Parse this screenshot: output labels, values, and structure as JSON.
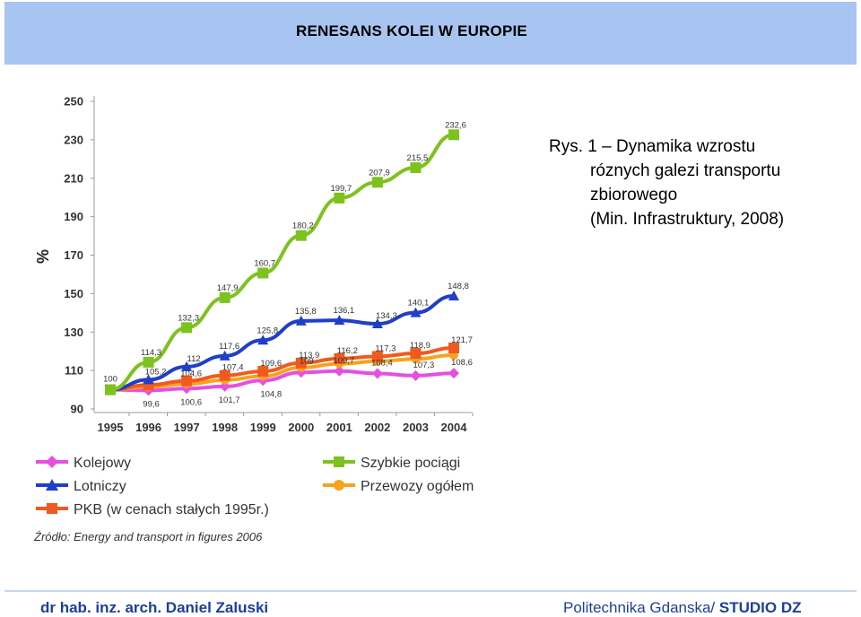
{
  "header": {
    "title": "RENESANS KOLEI W EUROPIE"
  },
  "caption": {
    "line1": "Rys. 1 – Dynamika wzrostu",
    "line2": "róznych galezi transportu",
    "line3": "zbiorowego",
    "line4": "(Min. Infrastruktury, 2008)"
  },
  "chart_data": {
    "type": "line",
    "title": "",
    "xlabel": "",
    "ylabel": "%",
    "x": [
      1995,
      1996,
      1997,
      1998,
      1999,
      2000,
      2001,
      2002,
      2003,
      2004
    ],
    "ylim": [
      90,
      250
    ],
    "yticks": [
      90,
      110,
      130,
      150,
      170,
      190,
      210,
      230,
      250
    ],
    "grid": false,
    "legend_position": "bottom",
    "series": [
      {
        "name": "Szybkie pociągi",
        "color": "#7dc21e",
        "marker": "square",
        "values": [
          100,
          114.3,
          132.3,
          147.9,
          160.7,
          180.2,
          199.7,
          207.9,
          215.5,
          232.6
        ],
        "labels": [
          "",
          "114,3",
          "132,3",
          "147,9",
          "160,7",
          "180,2",
          "199,7",
          "207,9",
          "215,5",
          "232,6"
        ]
      },
      {
        "name": "Lotniczy",
        "color": "#1f3fc8",
        "marker": "triangle",
        "values": [
          100,
          105.2,
          112,
          117.6,
          125.8,
          135.8,
          136.1,
          134.3,
          140.1,
          148.8
        ],
        "labels": [
          "",
          "105,2",
          "112",
          "117,6",
          "125,8",
          "135,8",
          "136,1",
          "134,3",
          "140,1",
          "148,8"
        ]
      },
      {
        "name": "PKB (w cenach stałych 1995r.)",
        "color": "#f05a1e",
        "marker": "square",
        "values": [
          100,
          102.5,
          104.6,
          107.4,
          109.6,
          113.9,
          116.2,
          117.3,
          118.9,
          121.7
        ],
        "labels": [
          "",
          "",
          "104,6",
          "107,4",
          "109,6",
          "113,9",
          "116,2",
          "117,3",
          "118,9",
          "121,7"
        ]
      },
      {
        "name": "Przewozy ogółem",
        "color": "#f7a21e",
        "marker": "circle",
        "values": [
          100,
          101.5,
          103,
          105,
          107,
          111.5,
          113.5,
          114.8,
          116,
          118
        ],
        "labels": [
          "",
          "",
          "",
          "",
          "",
          "",
          "",
          "",
          "",
          ""
        ]
      },
      {
        "name": "Kolejowy",
        "color": "#e64fe0",
        "marker": "diamond",
        "values": [
          100,
          99.6,
          100.6,
          101.7,
          104.8,
          109,
          109.7,
          108.4,
          107.3,
          108.6
        ],
        "labels": [
          "100",
          "99,6",
          "100,6",
          "101,7",
          "104,8",
          "109",
          "109,7",
          "108,4",
          "107,3",
          "108,6"
        ]
      }
    ],
    "legend_order": [
      "Kolejowy",
      "Szybkie pociągi",
      "Lotniczy",
      "Przewozy ogółem",
      "PKB (w cenach stałych 1995r.)"
    ],
    "source": "Źródło: Energy and transport in figures 2006"
  },
  "footer": {
    "author": "dr hab. inz. arch. Daniel Zaluski",
    "institution": "Politechnika Gdanska/ ",
    "studio": "STUDIO DZ"
  }
}
